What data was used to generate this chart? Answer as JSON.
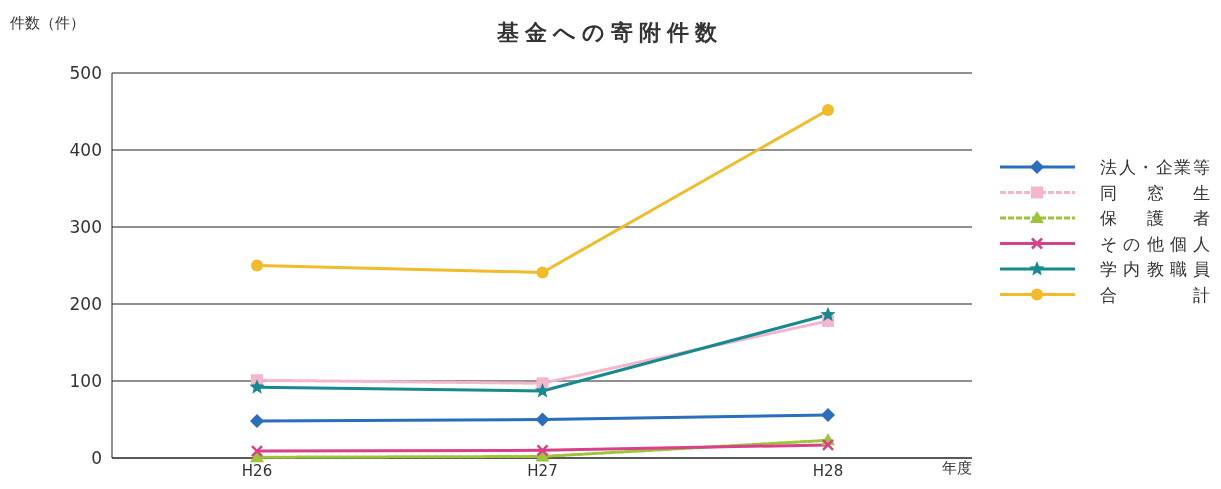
{
  "chart_data": {
    "type": "line",
    "title": "基金への寄附件数",
    "ylabel": "件数（件）",
    "xlabel": "年度",
    "categories": [
      "H26",
      "H27",
      "H28"
    ],
    "series": [
      {
        "name": "法人・企業等",
        "color": "#2a6ebd",
        "marker": "diamond",
        "values": [
          48,
          50,
          56
        ]
      },
      {
        "name": "同窓生",
        "color": "#f4b6cf",
        "marker": "square",
        "line_style": "dashed",
        "values": [
          101,
          97,
          178
        ]
      },
      {
        "name": "保護者",
        "color": "#9dc43a",
        "marker": "triangle",
        "line_style": "dashed",
        "values": [
          1,
          2,
          23
        ]
      },
      {
        "name": "その他個人",
        "color": "#d9408a",
        "marker": "cross",
        "values": [
          9,
          10,
          17
        ]
      },
      {
        "name": "学内教職員",
        "color": "#168a8f",
        "marker": "star",
        "values": [
          92,
          87,
          186
        ]
      },
      {
        "name": "合計",
        "color": "#f2bb2a",
        "marker": "circle",
        "values": [
          250,
          241,
          452
        ]
      }
    ],
    "ylim": [
      0,
      500
    ],
    "yticks": [
      0,
      100,
      200,
      300,
      400,
      500
    ],
    "grid": "y",
    "legend": "right"
  }
}
